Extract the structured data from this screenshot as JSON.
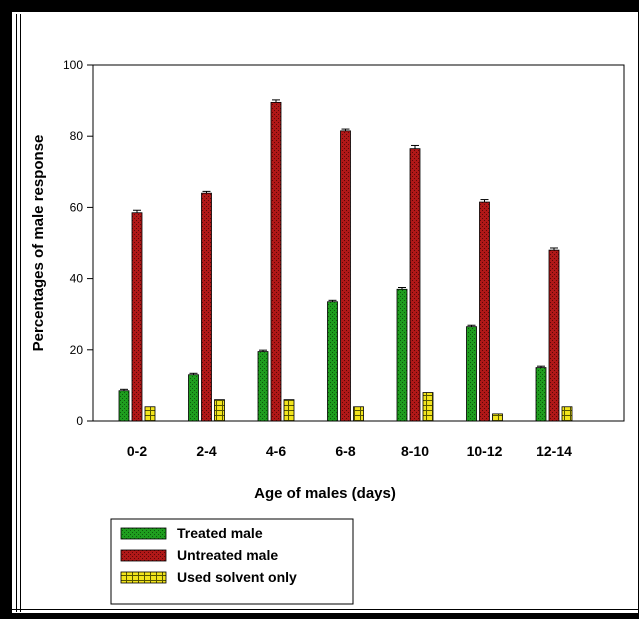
{
  "chart_data": {
    "type": "bar",
    "title": "",
    "xlabel": "Age of males (days)",
    "ylabel": "Percentages of male response",
    "ylim": [
      0,
      100
    ],
    "yticks": [
      0,
      20,
      40,
      60,
      80,
      100
    ],
    "categories": [
      "0-2",
      "2-4",
      "4-6",
      "6-8",
      "8-10",
      "10-12",
      "12-14"
    ],
    "series": [
      {
        "name": "Treated male",
        "color": "#1f9e1f",
        "values": [
          8.5,
          13,
          19.5,
          33.5,
          37,
          26.5,
          15
        ],
        "errors": [
          0.4,
          0.4,
          0.4,
          0.4,
          0.5,
          0.4,
          0.4
        ]
      },
      {
        "name": "Untreated male",
        "color": "#b01818",
        "values": [
          58.5,
          64,
          89.5,
          81.5,
          76.5,
          61.5,
          48
        ],
        "errors": [
          0.7,
          0.5,
          0.7,
          0.5,
          0.9,
          0.7,
          0.6
        ]
      },
      {
        "name": "Used solvent only",
        "color": "#f2e41c",
        "values": [
          4,
          6,
          6,
          4,
          8,
          2,
          4
        ],
        "errors": [
          0,
          0,
          0,
          0,
          0,
          0,
          0
        ]
      }
    ],
    "legend_position": "bottom-left",
    "grid": false
  }
}
